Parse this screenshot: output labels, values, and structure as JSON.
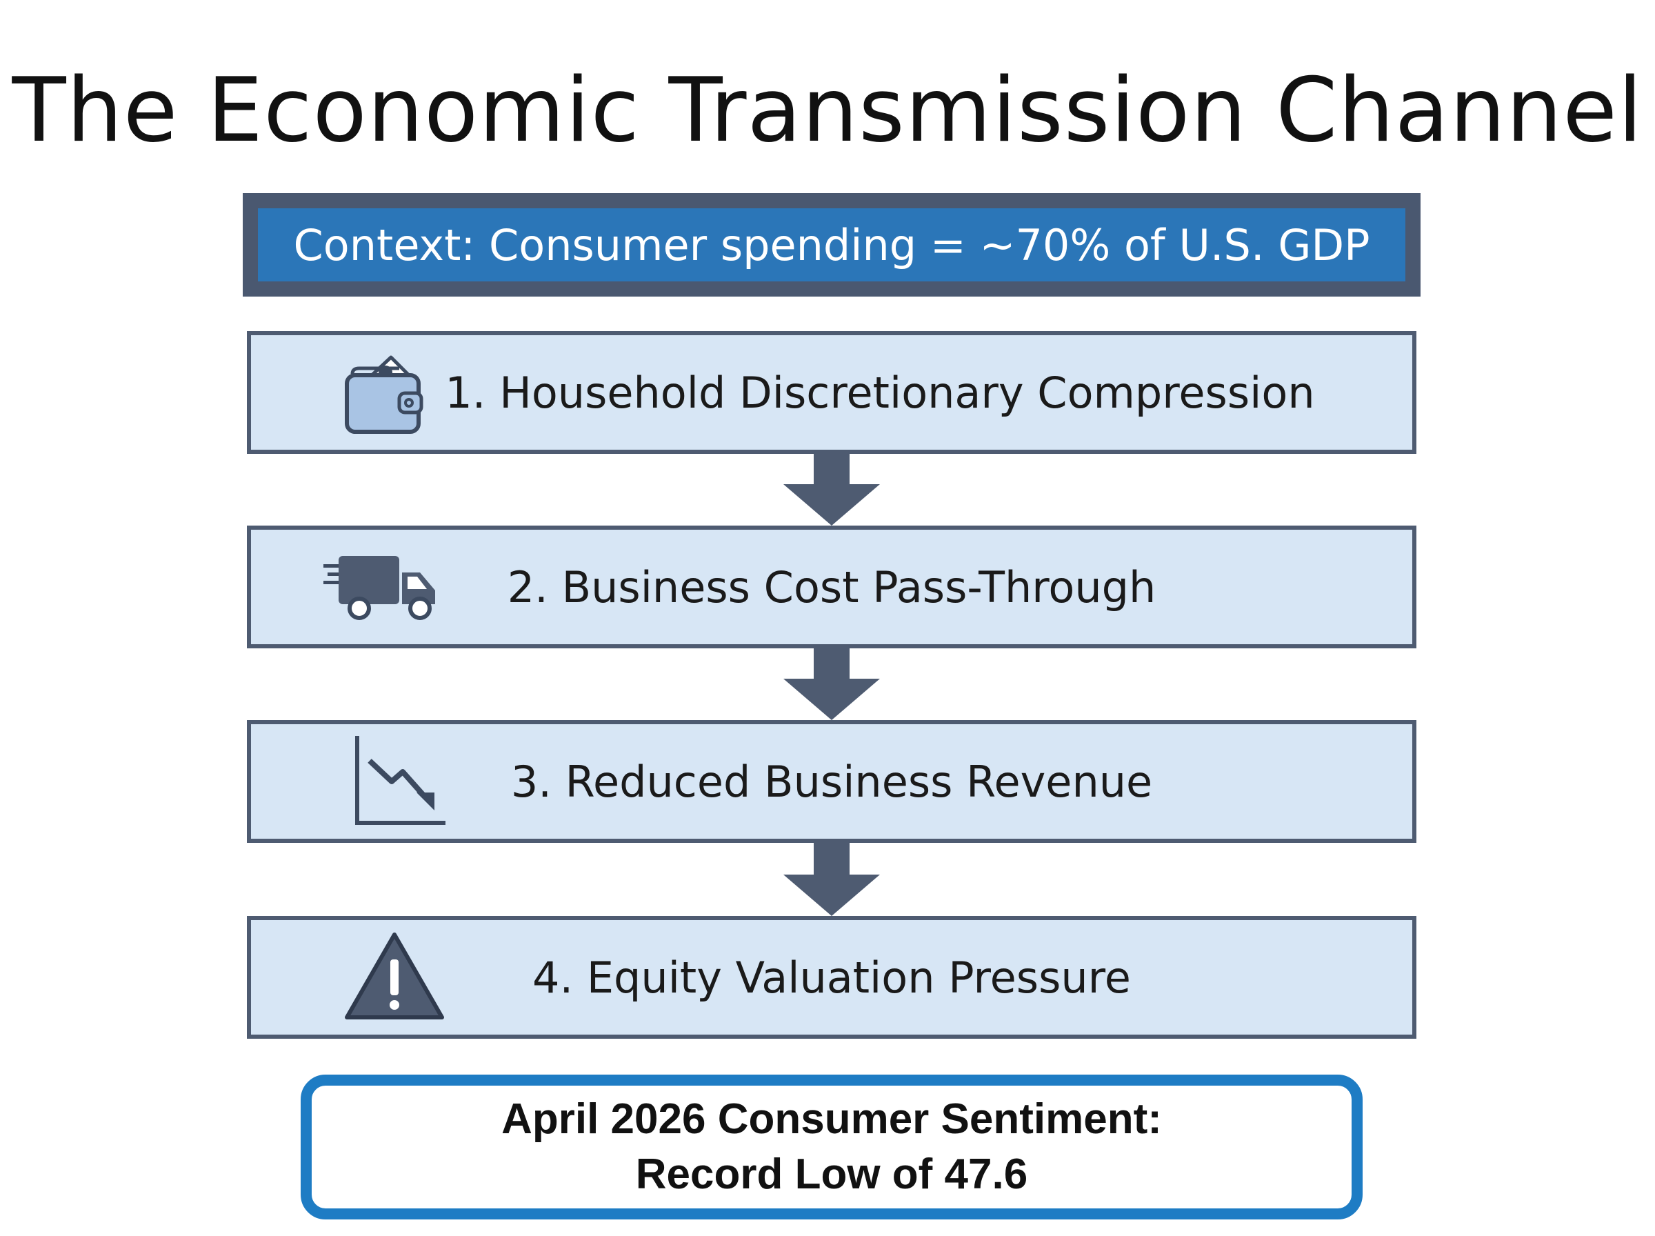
{
  "title": "The Economic Transmission Channel",
  "context": {
    "text": "Context: Consumer spending = ~70% of U.S. GDP"
  },
  "steps": [
    {
      "label": "1. Household Discretionary Compression",
      "icon": "wallet-icon"
    },
    {
      "label": "2. Business Cost Pass-Through",
      "icon": "delivery-truck-icon"
    },
    {
      "label": "3. Reduced Business Revenue",
      "icon": "declining-chart-icon"
    },
    {
      "label": "4. Equity Valuation Pressure",
      "icon": "warning-icon"
    }
  ],
  "callout": {
    "line1": "April 2026 Consumer Sentiment:",
    "line2": "Record Low of 47.6"
  },
  "colors": {
    "context_border": "#4a5870",
    "context_fill": "#2b76b8",
    "step_fill": "#d7e6f5",
    "step_border": "#4e5b71",
    "arrow": "#4e5b71",
    "icon_fill": "#a9c4e4",
    "callout_border": "#1e7cc4"
  }
}
